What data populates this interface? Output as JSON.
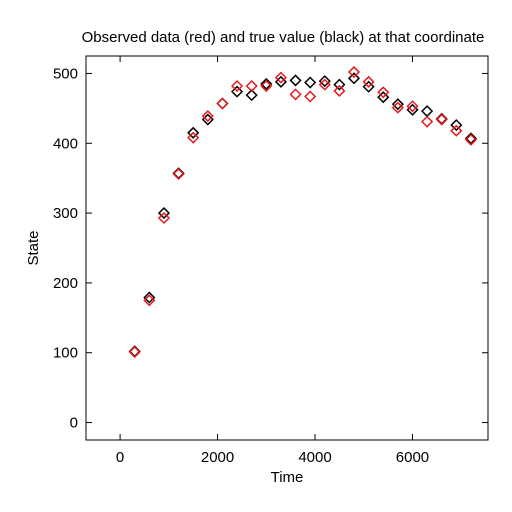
{
  "chart_data": {
    "type": "scatter",
    "title": "Observed data (red) and true value (black) at that coordinate",
    "xlabel": "Time",
    "ylabel": "State",
    "xlim": [
      -700,
      7550
    ],
    "ylim": [
      -25,
      525
    ],
    "xticks": [
      0,
      2000,
      4000,
      6000
    ],
    "yticks": [
      0,
      100,
      200,
      300,
      400,
      500
    ],
    "grid": false,
    "legend": "none",
    "marker": "diamond",
    "series": [
      {
        "color": "#000000",
        "x": [
          300,
          600,
          900,
          1200,
          1500,
          1800,
          2100,
          2400,
          2700,
          3000,
          3300,
          3600,
          3900,
          4200,
          4500,
          4800,
          5100,
          5400,
          5700,
          6000,
          6300,
          6600,
          6900,
          7200
        ],
        "y": [
          102,
          179,
          300,
          357,
          415,
          434,
          457,
          474,
          469,
          485,
          488,
          490,
          487,
          489,
          484,
          493,
          481,
          466,
          456,
          448,
          446,
          435,
          426,
          407
        ]
      },
      {
        "color": "#e8191c",
        "x": [
          300,
          600,
          900,
          1200,
          1500,
          1800,
          2100,
          2400,
          2700,
          3000,
          3300,
          3600,
          3900,
          4200,
          4500,
          4800,
          5100,
          5400,
          5700,
          6000,
          6300,
          6600,
          6900,
          7200
        ],
        "y": [
          101,
          175,
          293,
          356,
          408,
          439,
          457,
          482,
          482,
          482,
          494,
          470,
          467,
          484,
          475,
          502,
          488,
          473,
          451,
          453,
          431,
          434,
          418,
          405
        ]
      }
    ]
  }
}
